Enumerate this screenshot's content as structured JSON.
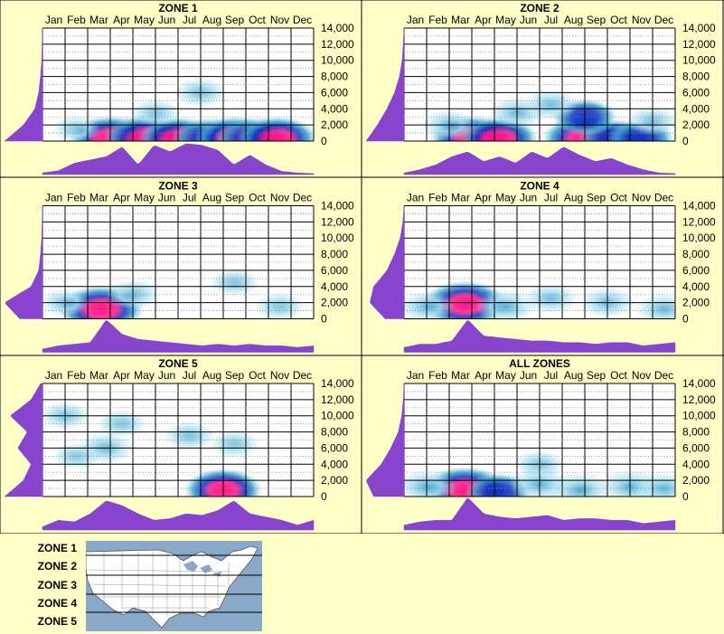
{
  "figure": {
    "background": "#ffffc8",
    "density_color": "#8844cc",
    "heat_colors": [
      "#ffffff",
      "#aee0f0",
      "#3aa0d0",
      "#1030c0",
      "#ff1488"
    ]
  },
  "chart_data": [
    {
      "type": "heatmap",
      "title": "ZONE 1",
      "months": [
        "Jan",
        "Feb",
        "Mar",
        "Apr",
        "May",
        "Jun",
        "Jul",
        "Aug",
        "Sep",
        "Oct",
        "Nov",
        "Dec"
      ],
      "y_ticks": [
        "0",
        "2,000",
        "4,000",
        "6,000",
        "8,000",
        "10,000",
        "12,000",
        "14,000"
      ],
      "ylim": [
        0,
        14000
      ],
      "hotspots": [
        {
          "month": 3.0,
          "elev": 300,
          "intensity": 0.95
        },
        {
          "month": 4.6,
          "elev": 300,
          "intensity": 1.0
        },
        {
          "month": 6.0,
          "elev": 300,
          "intensity": 0.85
        },
        {
          "month": 7.4,
          "elev": 300,
          "intensity": 0.8
        },
        {
          "month": 8.5,
          "elev": 300,
          "intensity": 0.9
        },
        {
          "month": 9.3,
          "elev": 300,
          "intensity": 0.8
        },
        {
          "month": 10.4,
          "elev": 300,
          "intensity": 0.9
        },
        {
          "month": 7.0,
          "elev": 6000,
          "intensity": 0.25
        },
        {
          "month": 5.0,
          "elev": 3500,
          "intensity": 0.2
        },
        {
          "month": 1.5,
          "elev": 1500,
          "intensity": 0.15
        }
      ],
      "month_density": [
        0.05,
        0.12,
        0.35,
        0.45,
        0.55,
        0.85,
        0.3,
        0.9,
        0.7,
        0.95,
        0.9,
        0.75,
        0.3,
        0.6,
        0.3,
        0.1,
        0.05,
        0.03
      ],
      "elev_density": [
        1.0,
        0.5,
        0.2,
        0.1,
        0.05,
        0.02,
        0.01,
        0.0
      ]
    },
    {
      "type": "heatmap",
      "title": "ZONE 2",
      "months": [
        "Jan",
        "Feb",
        "Mar",
        "Apr",
        "May",
        "Jun",
        "Jul",
        "Aug",
        "Sep",
        "Oct",
        "Nov",
        "Dec"
      ],
      "y_ticks": [
        "0",
        "2,000",
        "4,000",
        "6,000",
        "8,000",
        "10,000",
        "12,000",
        "14,000"
      ],
      "ylim": [
        0,
        14000
      ],
      "hotspots": [
        {
          "month": 3.0,
          "elev": 300,
          "intensity": 0.95
        },
        {
          "month": 4.2,
          "elev": 300,
          "intensity": 0.85
        },
        {
          "month": 8.0,
          "elev": 300,
          "intensity": 1.0
        },
        {
          "month": 9.3,
          "elev": 300,
          "intensity": 0.7
        },
        {
          "month": 10.5,
          "elev": 300,
          "intensity": 0.6
        },
        {
          "month": 8.0,
          "elev": 3000,
          "intensity": 0.55
        },
        {
          "month": 6.5,
          "elev": 4500,
          "intensity": 0.3
        },
        {
          "month": 5.0,
          "elev": 3500,
          "intensity": 0.35
        },
        {
          "month": 2.0,
          "elev": 2000,
          "intensity": 0.3
        },
        {
          "month": 11.0,
          "elev": 2500,
          "intensity": 0.25
        }
      ],
      "month_density": [
        0.05,
        0.15,
        0.3,
        0.55,
        0.7,
        0.4,
        0.55,
        0.35,
        0.7,
        0.5,
        0.85,
        0.6,
        0.4,
        0.5,
        0.3,
        0.15,
        0.05,
        0.03
      ],
      "elev_density": [
        1.0,
        0.7,
        0.45,
        0.25,
        0.12,
        0.05,
        0.02,
        0.0
      ]
    },
    {
      "type": "heatmap",
      "title": "ZONE 3",
      "months": [
        "Jan",
        "Feb",
        "Mar",
        "Apr",
        "May",
        "Jun",
        "Jul",
        "Aug",
        "Sep",
        "Oct",
        "Nov",
        "Dec"
      ],
      "y_ticks": [
        "0",
        "2,000",
        "4,000",
        "6,000",
        "8,000",
        "10,000",
        "12,000",
        "14,000"
      ],
      "ylim": [
        0,
        14000
      ],
      "hotspots": [
        {
          "month": 2.6,
          "elev": 1200,
          "intensity": 1.0
        },
        {
          "month": 4.0,
          "elev": 3000,
          "intensity": 0.3
        },
        {
          "month": 1.0,
          "elev": 2000,
          "intensity": 0.2
        },
        {
          "month": 8.5,
          "elev": 4500,
          "intensity": 0.2
        },
        {
          "month": 10.5,
          "elev": 1500,
          "intensity": 0.2
        }
      ],
      "month_density": [
        0.1,
        0.2,
        0.25,
        0.3,
        1.0,
        0.55,
        0.4,
        0.35,
        0.3,
        0.25,
        0.2,
        0.25,
        0.2,
        0.25,
        0.2,
        0.2,
        0.15,
        0.2
      ],
      "elev_density": [
        0.6,
        1.0,
        0.3,
        0.1,
        0.05,
        0.02,
        0.01,
        0.0
      ]
    },
    {
      "type": "heatmap",
      "title": "ZONE 4",
      "months": [
        "Jan",
        "Feb",
        "Mar",
        "Apr",
        "May",
        "Jun",
        "Jul",
        "Aug",
        "Sep",
        "Oct",
        "Nov",
        "Dec"
      ],
      "y_ticks": [
        "0",
        "2,000",
        "4,000",
        "6,000",
        "8,000",
        "10,000",
        "12,000",
        "14,000"
      ],
      "ylim": [
        0,
        14000
      ],
      "hotspots": [
        {
          "month": 2.7,
          "elev": 1800,
          "intensity": 1.0
        },
        {
          "month": 4.5,
          "elev": 1500,
          "intensity": 0.45
        },
        {
          "month": 1.0,
          "elev": 1500,
          "intensity": 0.35
        },
        {
          "month": 6.5,
          "elev": 2500,
          "intensity": 0.3
        },
        {
          "month": 9.0,
          "elev": 2000,
          "intensity": 0.3
        },
        {
          "month": 11.5,
          "elev": 1200,
          "intensity": 0.35
        }
      ],
      "month_density": [
        0.15,
        0.25,
        0.25,
        0.35,
        1.0,
        0.5,
        0.45,
        0.4,
        0.35,
        0.35,
        0.3,
        0.3,
        0.25,
        0.3,
        0.3,
        0.2,
        0.25,
        0.3
      ],
      "elev_density": [
        0.5,
        0.9,
        0.8,
        0.45,
        0.25,
        0.1,
        0.03,
        0.0
      ]
    },
    {
      "type": "heatmap",
      "title": "ZONE 5",
      "months": [
        "Jan",
        "Feb",
        "Mar",
        "Apr",
        "May",
        "Jun",
        "Jul",
        "Aug",
        "Sep",
        "Oct",
        "Nov",
        "Dec"
      ],
      "y_ticks": [
        "0",
        "2,000",
        "4,000",
        "6,000",
        "8,000",
        "10,000",
        "12,000",
        "14,000"
      ],
      "ylim": [
        0,
        14000
      ],
      "hotspots": [
        {
          "month": 8.0,
          "elev": 800,
          "intensity": 0.85
        },
        {
          "month": 2.8,
          "elev": 6000,
          "intensity": 0.35
        },
        {
          "month": 1.0,
          "elev": 10000,
          "intensity": 0.2
        },
        {
          "month": 3.5,
          "elev": 9000,
          "intensity": 0.2
        },
        {
          "month": 6.5,
          "elev": 7500,
          "intensity": 0.25
        },
        {
          "month": 8.5,
          "elev": 6500,
          "intensity": 0.2
        },
        {
          "month": 1.5,
          "elev": 5000,
          "intensity": 0.15
        }
      ],
      "month_density": [
        0.1,
        0.3,
        0.25,
        0.5,
        0.9,
        0.75,
        0.5,
        0.3,
        0.35,
        0.5,
        0.45,
        0.6,
        0.9,
        0.5,
        0.4,
        0.3,
        0.15,
        0.3
      ],
      "elev_density": [
        1.0,
        0.5,
        0.3,
        0.65,
        0.4,
        0.85,
        0.3,
        0.05
      ]
    },
    {
      "type": "heatmap",
      "title": "ALL ZONES",
      "months": [
        "Jan",
        "Feb",
        "Mar",
        "Apr",
        "May",
        "Jun",
        "Jul",
        "Aug",
        "Sep",
        "Oct",
        "Nov",
        "Dec"
      ],
      "y_ticks": [
        "0",
        "2,000",
        "4,000",
        "6,000",
        "8,000",
        "10,000",
        "12,000",
        "14,000"
      ],
      "ylim": [
        0,
        14000
      ],
      "hotspots": [
        {
          "month": 2.7,
          "elev": 800,
          "intensity": 1.0
        },
        {
          "month": 4.2,
          "elev": 600,
          "intensity": 0.6
        },
        {
          "month": 7.8,
          "elev": 800,
          "intensity": 0.5
        },
        {
          "month": 1.0,
          "elev": 1200,
          "intensity": 0.45
        },
        {
          "month": 6.0,
          "elev": 1500,
          "intensity": 0.45
        },
        {
          "month": 10.0,
          "elev": 1200,
          "intensity": 0.45
        },
        {
          "month": 11.5,
          "elev": 1000,
          "intensity": 0.4
        },
        {
          "month": 6.0,
          "elev": 4000,
          "intensity": 0.2
        }
      ],
      "month_density": [
        0.15,
        0.25,
        0.3,
        0.3,
        1.0,
        0.5,
        0.4,
        0.35,
        0.4,
        0.45,
        0.3,
        0.35,
        0.35,
        0.3,
        0.3,
        0.2,
        0.25,
        0.3
      ],
      "elev_density": [
        0.8,
        1.0,
        0.6,
        0.35,
        0.15,
        0.06,
        0.02,
        0.0
      ]
    }
  ],
  "legend": {
    "zones": [
      "ZONE 1",
      "ZONE 2",
      "ZONE 3",
      "ZONE 4",
      "ZONE 5"
    ],
    "map": {
      "land_color": "#ffffff",
      "water_color": "#8aa8c8",
      "border_color": "#555555"
    }
  }
}
